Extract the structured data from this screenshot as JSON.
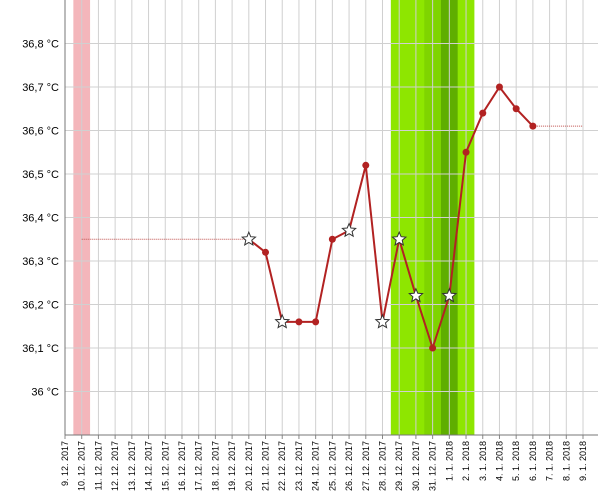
{
  "chart_data": {
    "type": "line",
    "categories": [
      "9. 12. 2017",
      "10. 12. 2017",
      "11. 12. 2017",
      "12. 12. 2017",
      "13. 12. 2017",
      "14. 12. 2017",
      "15. 12. 2017",
      "16. 12. 2017",
      "17. 12. 2017",
      "18. 12. 2017",
      "19. 12. 2017",
      "20. 12. 2017",
      "21. 12. 2017",
      "22. 12. 2017",
      "23. 12. 2017",
      "24. 12. 2017",
      "25. 12. 2017",
      "26. 12. 2017",
      "27. 12. 2017",
      "28. 12. 2017",
      "29. 12. 2017",
      "30. 12. 2017",
      "31. 12. 2017",
      "1. 1. 2018",
      "2. 1. 2018",
      "3. 1. 2018",
      "4. 1. 2018",
      "5. 1. 2018",
      "6. 1. 2018",
      "7. 1. 2018",
      "8. 1. 2018",
      "9. 1. 2018"
    ],
    "series": [
      {
        "color": "#b22222",
        "style": "solid",
        "values": [
          null,
          null,
          null,
          null,
          null,
          null,
          null,
          null,
          null,
          null,
          null,
          36.35,
          36.32,
          36.16,
          36.16,
          36.16,
          36.35,
          36.37,
          36.52,
          36.16,
          36.35,
          36.22,
          36.1,
          36.22,
          36.55,
          36.64,
          36.7,
          36.65,
          36.61,
          null,
          null,
          null
        ],
        "markers": [
          null,
          null,
          null,
          null,
          null,
          null,
          null,
          null,
          null,
          null,
          null,
          "star",
          "dot",
          "star",
          "dot",
          "dot",
          "dot",
          "star",
          "dot",
          "star",
          "star",
          "star",
          "dot",
          "star",
          "dot",
          "dot",
          "dot",
          "dot",
          "dot",
          null,
          null,
          null
        ]
      },
      {
        "color": "#c0504d",
        "style": "dotted",
        "values": [
          null,
          36.35,
          36.35,
          36.35,
          36.35,
          36.35,
          36.35,
          36.35,
          36.35,
          36.35,
          36.35,
          36.35,
          null,
          null,
          null,
          null,
          null,
          null,
          null,
          null,
          null,
          null,
          null,
          null,
          null,
          null,
          null,
          null,
          36.61,
          36.61,
          36.61,
          36.61
        ]
      }
    ],
    "bands": [
      {
        "from": 1,
        "to": 1,
        "color": "#f4b6bb"
      },
      {
        "from": 20,
        "to": 24,
        "color": "#8ee600"
      },
      {
        "from": 22,
        "to": 22,
        "color": "#7fd400"
      },
      {
        "from": 23,
        "to": 23,
        "color": "#5fae00"
      }
    ],
    "ylim": [
      35.9,
      36.9
    ],
    "yticks": [
      {
        "value": 36,
        "label": "36 °C"
      },
      {
        "value": 36.1,
        "label": "36,1 °C"
      },
      {
        "value": 36.2,
        "label": "36,2 °C"
      },
      {
        "value": 36.3,
        "label": "36,3 °C"
      },
      {
        "value": 36.4,
        "label": "36,4 °C"
      },
      {
        "value": 36.5,
        "label": "36,5 °C"
      },
      {
        "value": 36.6,
        "label": "36,6 °C"
      },
      {
        "value": 36.7,
        "label": "36,7 °C"
      },
      {
        "value": 36.8,
        "label": "36,8 °C"
      }
    ],
    "grid": true
  }
}
